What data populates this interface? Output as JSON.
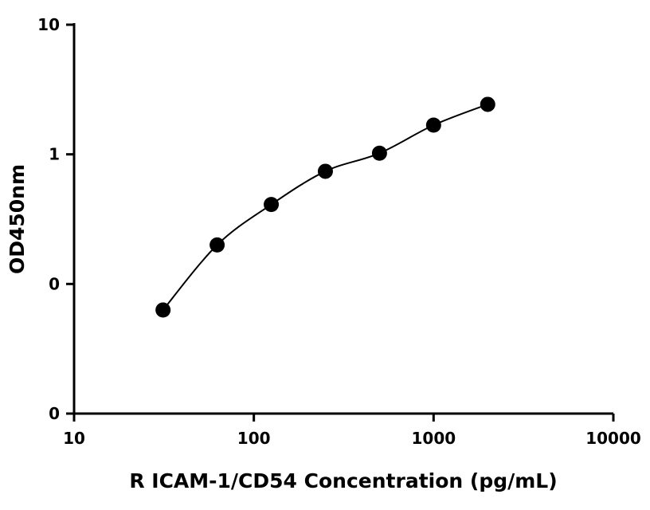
{
  "chart_data": {
    "type": "scatter",
    "xlabel": "R ICAM-1/CD54 Concentration (pg/mL)",
    "ylabel": "OD450nm",
    "x_scale": "log",
    "y_scale": "log",
    "xlim": [
      10,
      10000
    ],
    "ylim": [
      0.01,
      10
    ],
    "x_ticks": [
      10,
      100,
      1000,
      10000
    ],
    "x_tick_labels": [
      "10",
      "100",
      "1000",
      "10000"
    ],
    "y_ticks": [
      0.01,
      0.1,
      1,
      10
    ],
    "y_tick_labels": [
      "0",
      "0",
      "1",
      "10"
    ],
    "grid": false,
    "series": [
      {
        "x": [
          31.25,
          62.5,
          125,
          250,
          500,
          1000,
          2000
        ],
        "y": [
          0.063,
          0.2,
          0.41,
          0.74,
          1.02,
          1.68,
          2.43
        ]
      }
    ],
    "fit_curve": true
  }
}
